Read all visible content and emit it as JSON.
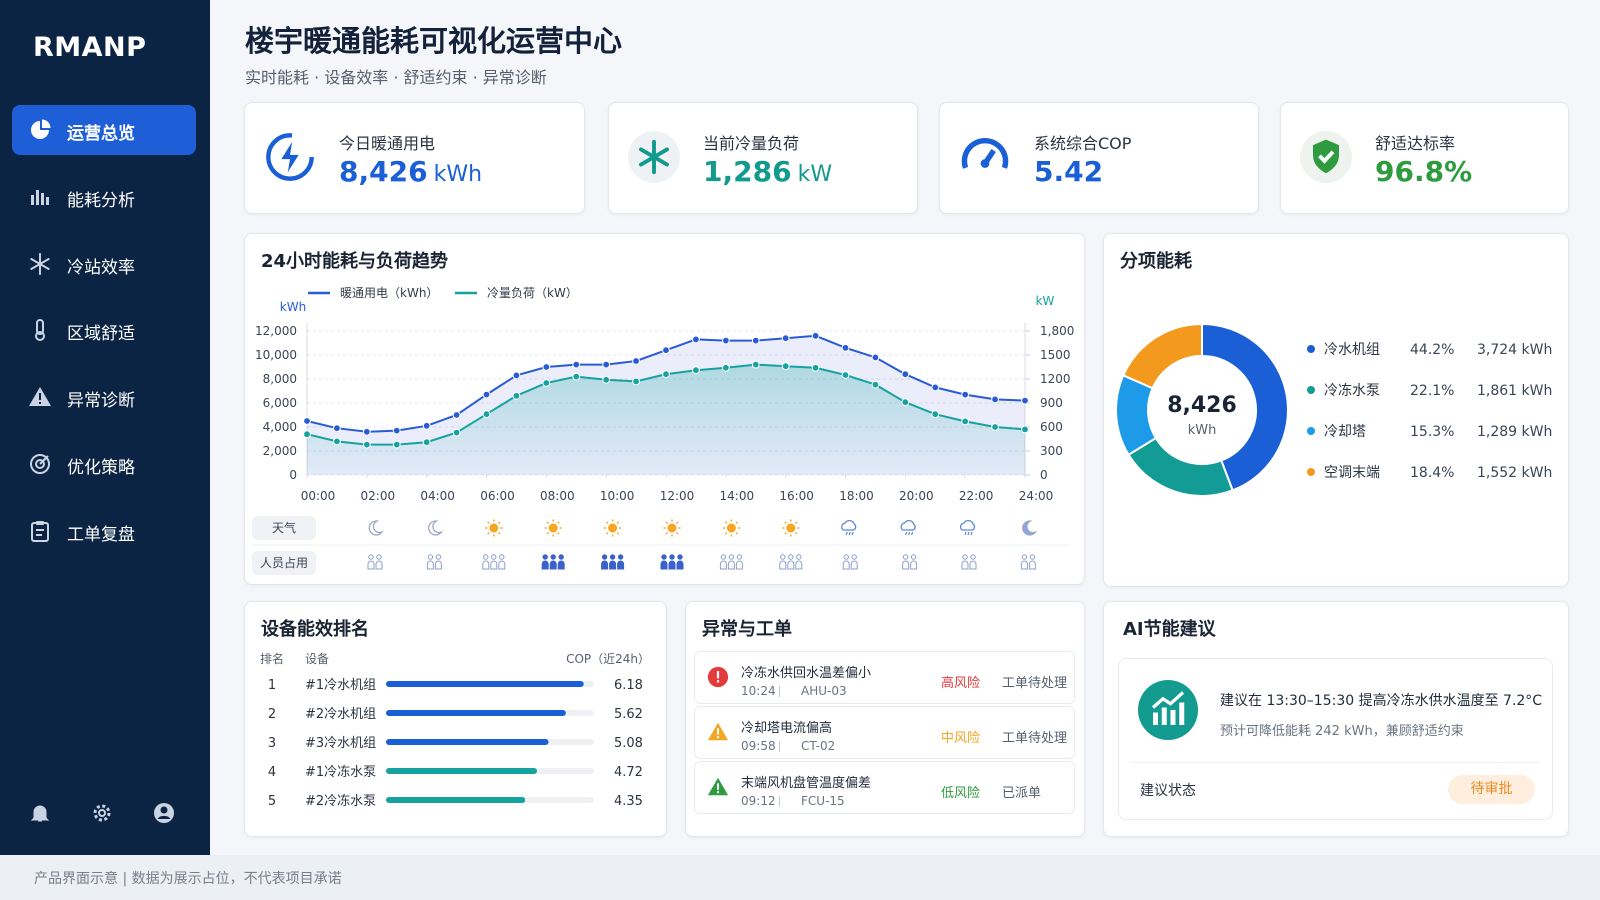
{
  "sidebar": {
    "logo": "RMANP",
    "nav": [
      "运营总览",
      "能耗分析",
      "冷站效率",
      "区域舒适",
      "异常诊断",
      "优化策略",
      "工单复盘"
    ],
    "active": 0
  },
  "header": {
    "title": "楼宇暖通能耗可视化运营中心",
    "subtitle": "实时能耗 · 设备效率 · 舒适约束 · 异常诊断"
  },
  "kpis": [
    {
      "label": "今日暖通用电",
      "value": "8,426",
      "unit": "kWh",
      "color": "#1a5fd6"
    },
    {
      "label": "当前冷量负荷",
      "value": "1,286",
      "unit": "kW",
      "color": "#129a8e"
    },
    {
      "label": "系统综合COP",
      "value": "5.42",
      "color": "#1a5fd6"
    },
    {
      "label": "舒适达标率",
      "value": "96.8%",
      "color": "#2e9b3e"
    }
  ],
  "chart_data": [
    {
      "type": "line",
      "title": "24小时能耗与负荷趋势",
      "x": [
        0,
        1,
        2,
        3,
        4,
        5,
        6,
        7,
        8,
        9,
        10,
        11,
        12,
        13,
        14,
        15,
        16,
        17,
        18,
        19,
        20,
        21,
        22,
        23,
        24
      ],
      "xlim": [
        0,
        24
      ],
      "xticks": [
        {
          "value": 0,
          "label": "00:00"
        },
        {
          "value": 2,
          "label": "02:00"
        },
        {
          "value": 4,
          "label": "04:00"
        },
        {
          "value": 6,
          "label": "06:00"
        },
        {
          "value": 8,
          "label": "08:00"
        },
        {
          "value": 10,
          "label": "10:00"
        },
        {
          "value": 12,
          "label": "12:00"
        },
        {
          "value": 14,
          "label": "14:00"
        },
        {
          "value": 16,
          "label": "16:00"
        },
        {
          "value": 18,
          "label": "18:00"
        },
        {
          "value": 20,
          "label": "20:00"
        },
        {
          "value": 22,
          "label": "22:00"
        },
        {
          "value": 24,
          "label": "24:00"
        }
      ],
      "ylabel": "kWh",
      "ylim": [
        0,
        12000
      ],
      "yticks": [
        0,
        {
          "value": 2000,
          "label": "2,000"
        },
        {
          "value": 4000,
          "label": "4,000"
        },
        {
          "value": 6000,
          "label": "6,000"
        },
        {
          "value": 8000,
          "label": "8,000"
        },
        {
          "value": 10000,
          "label": "10,000"
        },
        {
          "value": 12000,
          "label": "12,000"
        }
      ],
      "y2label": "kW",
      "y2lim": [
        0,
        1800
      ],
      "y2ticks": [
        0,
        300,
        600,
        900,
        1200,
        1500,
        {
          "value": 1800,
          "label": "1,800"
        }
      ],
      "grid": true,
      "series": [
        {
          "name": "暖通用电（kWh）",
          "color": "#2a5bd7",
          "values": [
            4500,
            3900,
            3600,
            3700,
            4100,
            5000,
            6700,
            8300,
            9000,
            9200,
            9200,
            9500,
            10400,
            11300,
            11200,
            11200,
            11400,
            11600,
            10600,
            9800,
            8400,
            7300,
            6700,
            6300,
            6200
          ]
        },
        {
          "name": "冷量负荷（kW）",
          "color": "#16a3a0",
          "axis": "y2",
          "values": [
            510,
            420,
            380,
            380,
            410,
            530,
            760,
            990,
            1150,
            1230,
            1190,
            1170,
            1260,
            1310,
            1340,
            1380,
            1360,
            1340,
            1250,
            1130,
            910,
            760,
            670,
            600,
            570
          ]
        }
      ]
    },
    {
      "type": "pie",
      "donut": true,
      "title": "分项能耗",
      "categories": [
        "冷水机组",
        "冷冻水泵",
        "冷却塔",
        "空调末端"
      ],
      "values": [
        44.2,
        22.1,
        15.3,
        18.4
      ],
      "value_labels": [
        "44.2%",
        "22.1%",
        "15.3%",
        "18.4%"
      ],
      "colors": [
        "#1a5fd6",
        "#139b96",
        "#1e9be8",
        "#f39a1e"
      ],
      "energy": [
        3724,
        1861,
        1289,
        1552
      ],
      "energy_labels": [
        "3,724 kWh",
        "1,861 kWh",
        "1,289 kWh",
        "1,552 kWh"
      ],
      "center_value": "8,426",
      "center_unit": "kWh"
    },
    {
      "type": "bar",
      "orientation": "horizontal",
      "title": "设备能效排名",
      "headers": [
        "排名",
        "设备",
        "COP（近24h）"
      ],
      "ranks": [
        "1",
        "2",
        "3",
        "4",
        "5"
      ],
      "categories": [
        "#1冷水机组",
        "#2冷水机组",
        "#3冷水机组",
        "#1冷冻水泵",
        "#2冷冻水泵"
      ],
      "values": [
        6.18,
        5.62,
        5.08,
        4.72,
        4.35
      ],
      "colors": [
        "#1a5fd6",
        "#1a5fd6",
        "#1a5fd6",
        "#16a3a0",
        "#16a3a0"
      ],
      "xlim": [
        0,
        6.5
      ]
    }
  ],
  "trend_rows": {
    "weather_label": "天气",
    "weather": [
      "night",
      "night",
      "sun",
      "sun",
      "sun",
      "sun",
      "sun",
      "sun",
      "rain",
      "rain",
      "rain",
      "night"
    ],
    "occupancy_label": "人员占用",
    "occupancy": [
      1,
      1,
      2,
      3,
      3,
      3,
      2,
      2,
      1,
      1,
      1,
      1
    ]
  },
  "alerts": {
    "title": "异常与工单",
    "items": [
      {
        "title": "冷冻水供回水温差偏小",
        "time": "10:24",
        "device": "AHU-03",
        "risk": "高风险",
        "status": "工单待处理",
        "level": "high"
      },
      {
        "title": "冷却塔电流偏高",
        "time": "09:58",
        "device": "CT-02",
        "risk": "中风险",
        "status": "工单待处理",
        "level": "medium"
      },
      {
        "title": "末端风机盘管温度偏差",
        "time": "09:12",
        "device": "FCU-15",
        "risk": "低风险",
        "status": "已派单",
        "level": "low"
      }
    ]
  },
  "ai": {
    "title": "AI节能建议",
    "suggestion": "建议在 13:30–15:30 提高冷冻水供水温度至 7.2°C",
    "effect": "预计可降低能耗 242 kWh，兼顾舒适约束",
    "status_label": "建议状态",
    "status": "待审批"
  },
  "footer": "产品界面示意 | 数据为展示占位，不代表项目承诺"
}
